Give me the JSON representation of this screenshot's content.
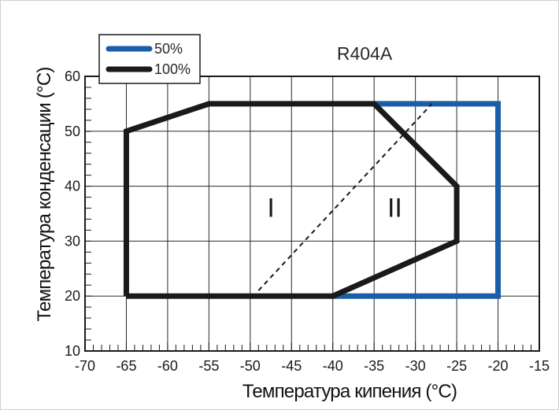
{
  "chart_data": {
    "type": "line",
    "title": "R404A",
    "xlabel": "Температура кипения (°C)",
    "ylabel": "Температура конденсации (°C)",
    "xlim": [
      -70,
      -15
    ],
    "ylim": [
      10,
      60
    ],
    "xticks": [
      -70,
      -65,
      -60,
      -55,
      -50,
      -45,
      -40,
      -35,
      -30,
      -25,
      -20,
      -15
    ],
    "yticks": [
      10,
      20,
      30,
      40,
      50,
      60
    ],
    "grid": true,
    "legend_position": "top-left",
    "series": [
      {
        "name": "50%",
        "color": "#1a5ea8",
        "points": [
          [
            -40,
            20
          ],
          [
            -20,
            20
          ],
          [
            -20,
            55
          ],
          [
            -35,
            55
          ]
        ]
      },
      {
        "name": "100%",
        "color": "#1a1a1a",
        "points": [
          [
            -65,
            20
          ],
          [
            -40,
            20
          ],
          [
            -25,
            30
          ],
          [
            -25,
            40
          ],
          [
            -35,
            55
          ],
          [
            -55,
            55
          ],
          [
            -65,
            50
          ],
          [
            -65,
            20
          ]
        ]
      }
    ],
    "divider": {
      "style": "dashed",
      "points": [
        [
          -49,
          21
        ],
        [
          -28,
          55
        ]
      ]
    },
    "annotations": [
      {
        "text": "I",
        "x": -47.5,
        "y": 36
      },
      {
        "text": "II",
        "x": -32.5,
        "y": 36
      }
    ]
  }
}
